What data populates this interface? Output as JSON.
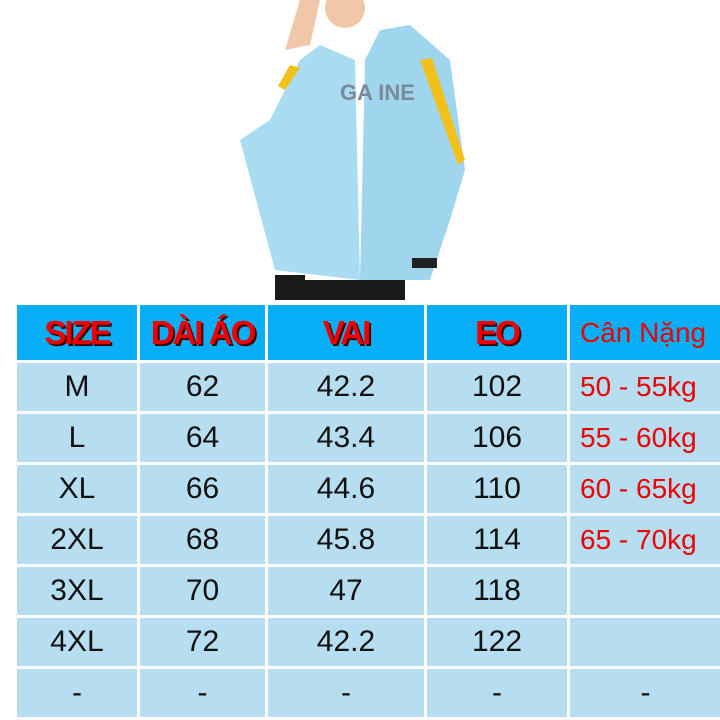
{
  "photo": {
    "alt": "Man wearing light blue hooded jacket with yellow stripes",
    "colors": {
      "jacket": "#a9dcf0",
      "stripe": "#f2c01a",
      "shirt": "#ffffff",
      "pants": "#1a1a1a"
    }
  },
  "colors": {
    "header_bg": "#08aff7",
    "row_bg": "#b6def0",
    "header_text": "#e00000",
    "weight_text": "#e00000"
  },
  "table": {
    "headers": [
      "SIZE",
      "DÀI ÁO",
      "VAI",
      "EO",
      "Cân Nặng"
    ],
    "rows": [
      [
        "M",
        "62",
        "42.2",
        "102",
        "50 - 55kg"
      ],
      [
        "L",
        "64",
        "43.4",
        "106",
        "55 - 60kg"
      ],
      [
        "XL",
        "66",
        "44.6",
        "110",
        "60 - 65kg"
      ],
      [
        "2XL",
        "68",
        "45.8",
        "114",
        "65 - 70kg"
      ],
      [
        "3XL",
        "70",
        "47",
        "118",
        ""
      ],
      [
        "4XL",
        "72",
        "42.2",
        "122",
        ""
      ],
      [
        "-",
        "-",
        "-",
        "-",
        "-"
      ]
    ]
  }
}
